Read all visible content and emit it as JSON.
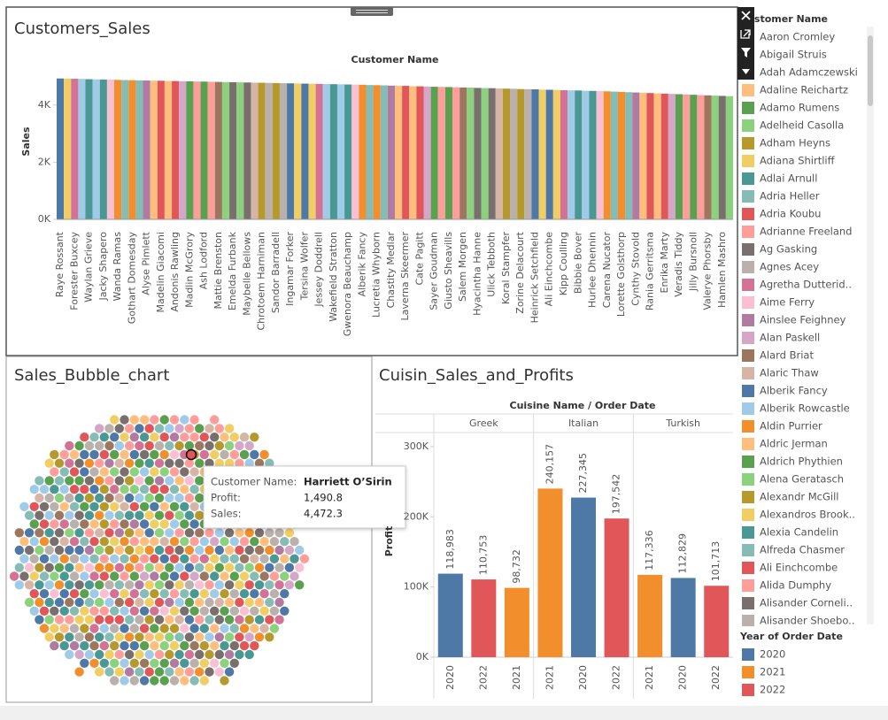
{
  "chart_data": [
    {
      "type": "bar",
      "title": "Customers_Sales",
      "x_label": "Customer Name",
      "y_label": "Sales",
      "categories": [
        "Raye Rossant",
        null,
        "Forester Buxcey",
        null,
        "Waylan Grieve",
        null,
        "Jacky Shapero",
        null,
        "Wanda Ramas",
        null,
        "Gothart Domesday",
        null,
        "Alyse Pimlett",
        null,
        "Madelin Giacomi",
        null,
        "Andonis Rawling",
        null,
        "Madlin McGrory",
        null,
        "Ash Lodford",
        null,
        "Mattie Brenston",
        null,
        "Emelda Furbank",
        null,
        "Maybelle Bellows",
        null,
        "Chrotoem Harniman",
        null,
        "Sandor Barradell",
        null,
        "Ingamar Forker",
        null,
        "Tersina Wolfer",
        null,
        "Jessey Doddrell",
        null,
        "Wakefield Stratton",
        null,
        "Gwenora Beauchamp",
        null,
        "Alberik Fancy",
        null,
        "Lucretia Whyborn",
        null,
        "Chastity Medlar",
        null,
        "Laverna Skeermer",
        null,
        "Cate Pagitt",
        null,
        "Sayer Goudman",
        null,
        "Giusto Sheavills",
        null,
        "Salem Morgen",
        null,
        "Hyacintha Hanne",
        null,
        "Ulick Tebboth",
        null,
        "Koral Stampfer",
        null,
        "Zorine Delacourt",
        null,
        "Heinrick Setchfield",
        null,
        "Ali Einchcombe",
        null,
        "Kipp Coulling",
        null,
        "Bibbie Bover",
        null,
        "Hurlee Dhennin",
        null,
        "Carena Nucator",
        null,
        "Lorette Golsthorp",
        null,
        "Cynthy Stovold",
        null,
        "Rania Gerritsma",
        null,
        "Enrika Marty",
        null,
        "Veradis Tiddy",
        null,
        "Jilly Bursnoll",
        null,
        "Valerye Phorsby",
        null,
        "Hamlen Mashro",
        null
      ],
      "values": [
        4930,
        4925,
        4920,
        4915,
        4905,
        4900,
        4895,
        4890,
        4880,
        4875,
        4870,
        4865,
        4860,
        4855,
        4850,
        4845,
        4840,
        4835,
        4830,
        4825,
        4820,
        4815,
        4810,
        4805,
        4800,
        4795,
        4790,
        4785,
        4780,
        4775,
        4770,
        4765,
        4760,
        4755,
        4750,
        4745,
        4740,
        4735,
        4730,
        4725,
        4720,
        4715,
        4710,
        4700,
        4695,
        4690,
        4680,
        4675,
        4670,
        4660,
        4655,
        4650,
        4640,
        4635,
        4630,
        4620,
        4615,
        4610,
        4600,
        4595,
        4590,
        4580,
        4575,
        4570,
        4560,
        4555,
        4550,
        4540,
        4535,
        4530,
        4520,
        4515,
        4510,
        4500,
        4495,
        4490,
        4480,
        4470,
        4460,
        4450,
        4440,
        4430,
        4420,
        4410,
        4400,
        4390,
        4380,
        4370,
        4360,
        4350,
        4340,
        4330,
        4320,
        4310
      ],
      "ylim": [
        0,
        5200
      ],
      "yticks": [
        {
          "value": 0,
          "label": "0K"
        },
        {
          "value": 2000,
          "label": "2K"
        },
        {
          "value": 4000,
          "label": "4K"
        }
      ]
    },
    {
      "type": "bubble",
      "title": "Sales_Bubble_chart",
      "tooltip": {
        "rows": [
          {
            "label": "Customer Name:",
            "value": "Harriett O’Sirin"
          },
          {
            "label": "Profit:",
            "value": 1490.8,
            "value_label": "1,490.8"
          },
          {
            "label": "Sales:",
            "value": 4472.3,
            "value_label": "4,472.3"
          }
        ]
      }
    },
    {
      "type": "grouped_bar",
      "title": "Cuisin_Sales_and_Profits",
      "header": "Cuisine Name / Order Date",
      "y_label": "Profit",
      "groups": [
        {
          "name": "Greek",
          "categories": [
            "2020",
            "2022",
            "2021"
          ],
          "values": [
            118983,
            110753,
            98732
          ],
          "value_labels": [
            "118,983",
            "110,753",
            "98,732"
          ]
        },
        {
          "name": "Italian",
          "categories": [
            "2021",
            "2020",
            "2022"
          ],
          "values": [
            240157,
            227345,
            197542
          ],
          "value_labels": [
            "240,157",
            "227,345",
            "197,542"
          ]
        },
        {
          "name": "Turkish",
          "categories": [
            "2021",
            "2020",
            "2022"
          ],
          "values": [
            117336,
            112829,
            101713
          ],
          "value_labels": [
            "117,336",
            "112,829",
            "101,713"
          ]
        }
      ],
      "ylim": [
        0,
        320000
      ],
      "yticks": [
        {
          "value": 0,
          "label": "0K"
        },
        {
          "value": 100000,
          "label": "100K"
        },
        {
          "value": 200000,
          "label": "200K"
        },
        {
          "value": 300000,
          "label": "300K"
        }
      ]
    }
  ],
  "legends": [
    {
      "title": "Customer Name",
      "items": [
        {
          "name": "Aaron Cromley",
          "color": "#4e79a7"
        },
        {
          "name": "Abigail Struis",
          "color": "#a0cbe8"
        },
        {
          "name": "Adah Adamczewski",
          "color": "#f28e2b"
        },
        {
          "name": "Adaline Reichartz",
          "color": "#ffbe7d"
        },
        {
          "name": "Adamo Rumens",
          "color": "#59a14f"
        },
        {
          "name": "Adelheid Casolla",
          "color": "#8cd17d"
        },
        {
          "name": "Adham Heyns",
          "color": "#b6992d"
        },
        {
          "name": "Adiana Shirtliff",
          "color": "#f1ce63"
        },
        {
          "name": "Adlai Arnull",
          "color": "#499894"
        },
        {
          "name": "Adria Heller",
          "color": "#86bcb6"
        },
        {
          "name": "Adria Koubu",
          "color": "#e15759"
        },
        {
          "name": "Adrianne Freeland",
          "color": "#ff9d9a"
        },
        {
          "name": "Ag Gasking",
          "color": "#79706e"
        },
        {
          "name": "Agnes Acey",
          "color": "#bab0ac"
        },
        {
          "name": "Agretha Dutterid..",
          "color": "#d37295"
        },
        {
          "name": "Aime Ferry",
          "color": "#fabfd2"
        },
        {
          "name": "Ainslee Feighney",
          "color": "#b07aa1"
        },
        {
          "name": "Alan Paskell",
          "color": "#d4a6c8"
        },
        {
          "name": "Alard Briat",
          "color": "#9d7660"
        },
        {
          "name": "Alaric Thaw",
          "color": "#d7b5a6"
        },
        {
          "name": "Alberik Fancy",
          "color": "#4e79a7"
        },
        {
          "name": "Alberik Rowcastle",
          "color": "#a0cbe8"
        },
        {
          "name": "Aldin Purrier",
          "color": "#f28e2b"
        },
        {
          "name": "Aldric Jerman",
          "color": "#ffbe7d"
        },
        {
          "name": "Aldrich Phythien",
          "color": "#59a14f"
        },
        {
          "name": "Alena Geratasch",
          "color": "#8cd17d"
        },
        {
          "name": "Alexandr McGill",
          "color": "#b6992d"
        },
        {
          "name": "Alexandros Brook..",
          "color": "#f1ce63"
        },
        {
          "name": "Alexia Candelin",
          "color": "#499894"
        },
        {
          "name": "Alfreda Chasmer",
          "color": "#86bcb6"
        },
        {
          "name": "Ali Einchcombe",
          "color": "#e15759"
        },
        {
          "name": "Alida Dumphy",
          "color": "#ff9d9a"
        },
        {
          "name": "Alisander Corneli..",
          "color": "#79706e"
        },
        {
          "name": "Alisander Shoebo..",
          "color": "#bab0ac"
        }
      ]
    },
    {
      "title": "Year of Order Date",
      "items": [
        {
          "name": "2020",
          "color": "#4e79a7"
        },
        {
          "name": "2021",
          "color": "#f28e2b"
        },
        {
          "name": "2022",
          "color": "#e15759"
        }
      ]
    }
  ]
}
